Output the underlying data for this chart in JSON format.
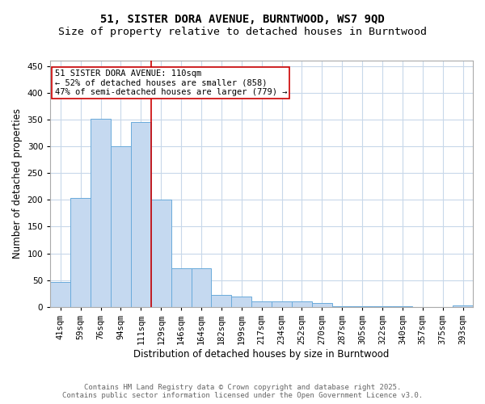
{
  "title_line1": "51, SISTER DORA AVENUE, BURNTWOOD, WS7 9QD",
  "title_line2": "Size of property relative to detached houses in Burntwood",
  "xlabel": "Distribution of detached houses by size in Burntwood",
  "ylabel": "Number of detached properties",
  "bar_labels": [
    "41sqm",
    "59sqm",
    "76sqm",
    "94sqm",
    "111sqm",
    "129sqm",
    "146sqm",
    "164sqm",
    "182sqm",
    "199sqm",
    "217sqm",
    "234sqm",
    "252sqm",
    "270sqm",
    "287sqm",
    "305sqm",
    "322sqm",
    "340sqm",
    "357sqm",
    "375sqm",
    "393sqm"
  ],
  "bar_values": [
    46,
    204,
    351,
    300,
    345,
    200,
    73,
    73,
    22,
    20,
    11,
    11,
    10,
    7,
    2,
    2,
    2,
    1,
    0,
    0,
    3
  ],
  "bar_color": "#c5d9f0",
  "bar_edge_color": "#6aabdb",
  "vline_color": "#cc0000",
  "annotation_text": "51 SISTER DORA AVENUE: 110sqm\n← 52% of detached houses are smaller (858)\n47% of semi-detached houses are larger (779) →",
  "annotation_box_color": "#ffffff",
  "annotation_box_edge": "#cc0000",
  "footer_line1": "Contains HM Land Registry data © Crown copyright and database right 2025.",
  "footer_line2": "Contains public sector information licensed under the Open Government Licence v3.0.",
  "bg_color": "#ffffff",
  "grid_color": "#c8d8ea",
  "title_fontsize": 10,
  "subtitle_fontsize": 9.5,
  "axis_label_fontsize": 8.5,
  "tick_fontsize": 7.5,
  "annotation_fontsize": 7.5,
  "footer_fontsize": 6.5
}
